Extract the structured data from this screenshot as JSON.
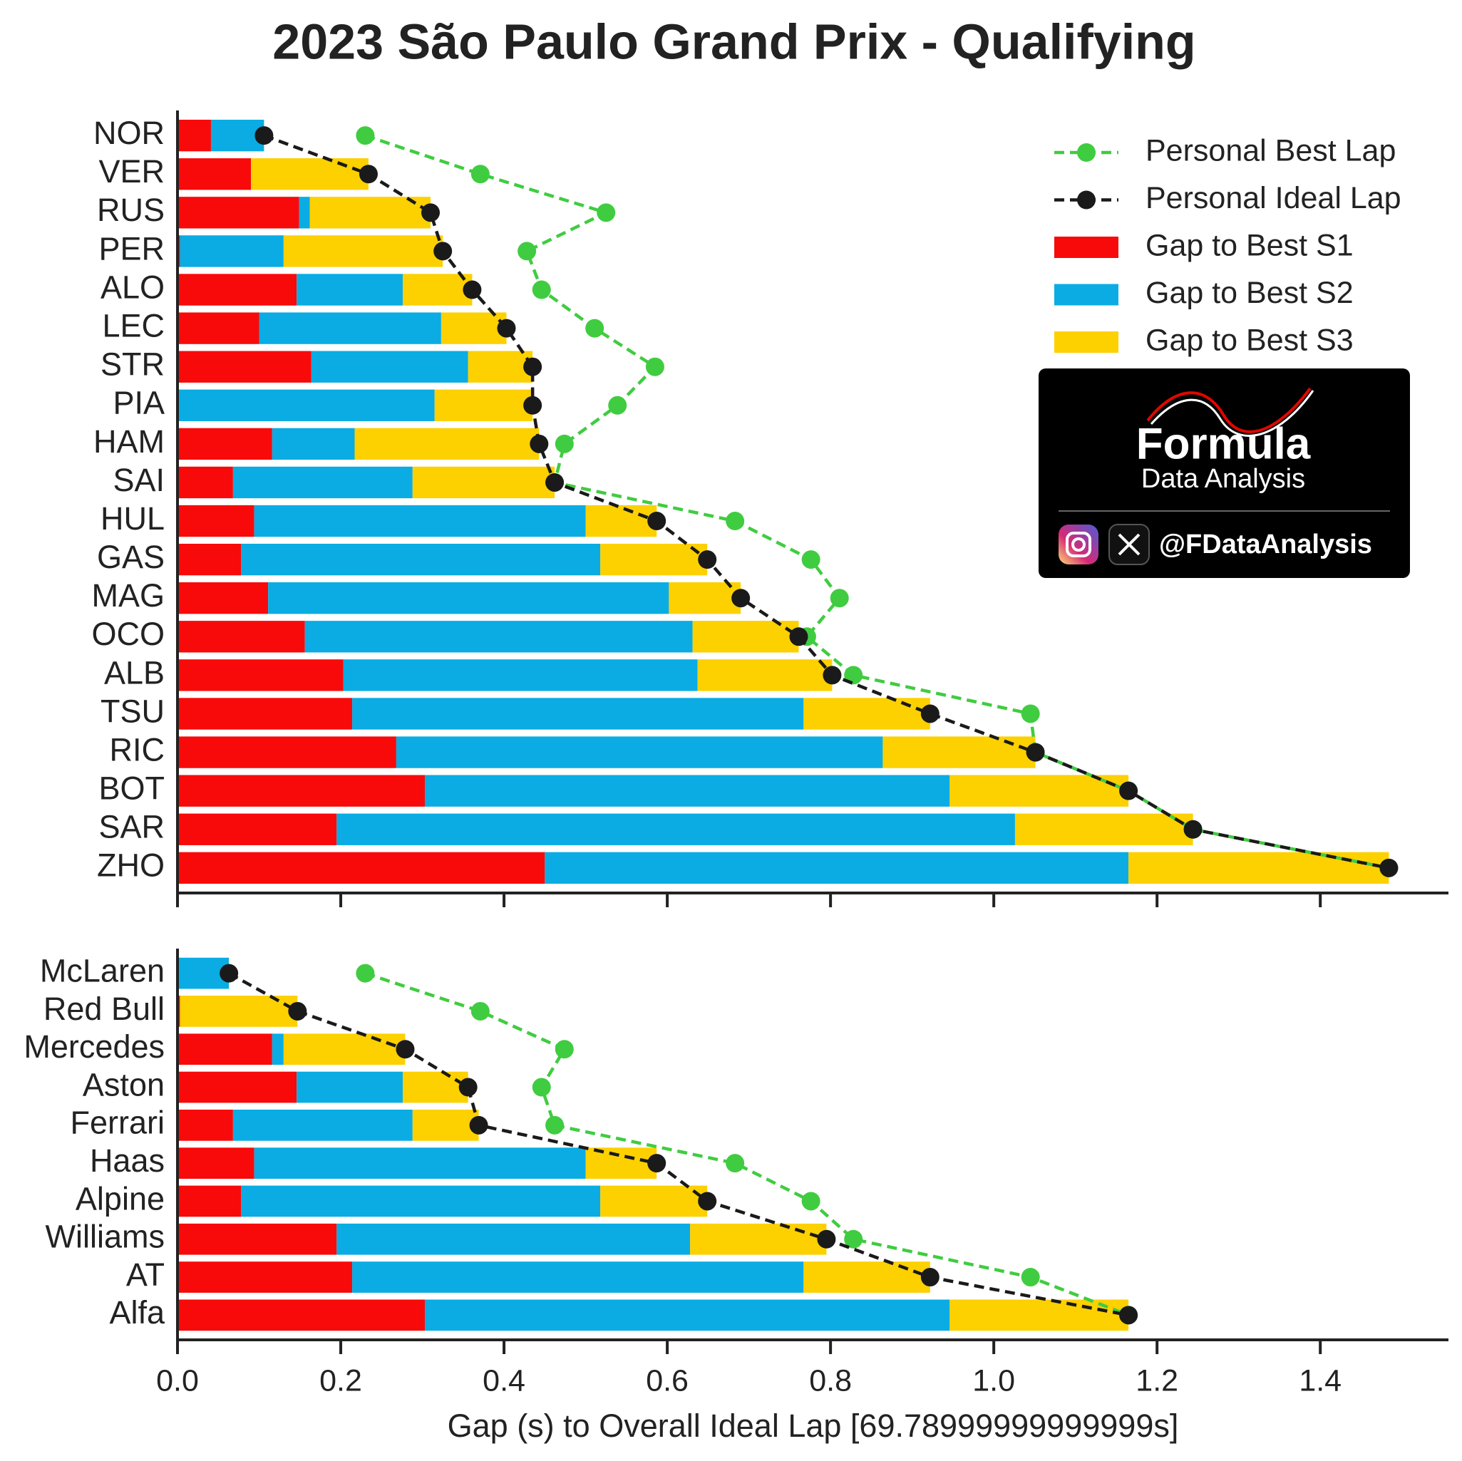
{
  "chart_data": [
    {
      "type": "bar",
      "orientation": "horizontal",
      "stacked": true,
      "title": "2023 São Paulo Grand Prix - Qualifying",
      "categories": [
        "NOR",
        "VER",
        "RUS",
        "PER",
        "ALO",
        "LEC",
        "STR",
        "PIA",
        "HAM",
        "SAI",
        "HUL",
        "GAS",
        "MAG",
        "OCO",
        "ALB",
        "TSU",
        "RIC",
        "BOT",
        "SAR",
        "ZHO"
      ],
      "series": [
        {
          "name": "Personal Best Lap",
          "type": "line",
          "color": "#40cc40",
          "values": [
            0.23,
            0.371,
            0.525,
            0.428,
            0.446,
            0.511,
            0.585,
            0.539,
            0.474,
            0.462,
            0.683,
            0.776,
            0.811,
            0.771,
            0.828,
            1.045,
            1.051,
            1.165,
            1.244,
            1.484
          ]
        },
        {
          "name": "Personal Ideal Lap",
          "type": "line",
          "color": "#1a1a1a",
          "values": [
            0.106,
            0.234,
            0.31,
            0.325,
            0.361,
            0.403,
            0.435,
            0.435,
            0.443,
            0.462,
            0.587,
            0.649,
            0.69,
            0.761,
            0.802,
            0.922,
            1.051,
            1.165,
            1.244,
            1.484
          ]
        },
        {
          "name": "Gap to Best S1",
          "type": "bar",
          "color": "#f80a0a",
          "values": [
            0.041,
            0.09,
            0.149,
            0.003,
            0.146,
            0.1,
            0.164,
            0,
            0.116,
            0.068,
            0.094,
            0.078,
            0.111,
            0.156,
            0.203,
            0.214,
            0.268,
            0.303,
            0.195,
            0.45
          ]
        },
        {
          "name": "Gap to Best S2",
          "type": "bar",
          "color": "#0aace3",
          "values": [
            0.065,
            0,
            0.013,
            0.127,
            0.13,
            0.223,
            0.192,
            0.315,
            0.101,
            0.22,
            0.406,
            0.44,
            0.491,
            0.475,
            0.434,
            0.553,
            0.596,
            0.643,
            0.831,
            0.715
          ]
        },
        {
          "name": "Gap to Best S3",
          "type": "bar",
          "color": "#fdd000",
          "values": [
            0,
            0.144,
            0.148,
            0.195,
            0.085,
            0.08,
            0.079,
            0.12,
            0.226,
            0.174,
            0.087,
            0.131,
            0.088,
            0.13,
            0.165,
            0.155,
            0.187,
            0.219,
            0.218,
            0.319
          ]
        }
      ],
      "xlim": [
        0,
        1.557
      ],
      "xticks": [
        0,
        0.2,
        0.4,
        0.6,
        0.8,
        1,
        1.2,
        1.4
      ],
      "xtick_labels": false,
      "legend": "upper right"
    },
    {
      "type": "bar",
      "orientation": "horizontal",
      "stacked": true,
      "categories": [
        "McLaren",
        "Red Bull",
        "Mercedes",
        "Aston",
        "Ferrari",
        "Haas",
        "Alpine",
        "Williams",
        "AT",
        "Alfa"
      ],
      "series": [
        {
          "type": "line",
          "color": "#40cc40",
          "values": [
            0.23,
            0.371,
            0.474,
            0.446,
            0.462,
            0.683,
            0.776,
            0.828,
            1.045,
            1.165
          ]
        },
        {
          "type": "line",
          "color": "#1a1a1a",
          "values": [
            0.063,
            0.147,
            0.279,
            0.356,
            0.369,
            0.587,
            0.649,
            0.795,
            0.922,
            1.165
          ]
        },
        {
          "type": "bar",
          "color": "#f80a0a",
          "values": [
            0,
            0.003,
            0.116,
            0.146,
            0.068,
            0.094,
            0.078,
            0.195,
            0.214,
            0.303
          ]
        },
        {
          "type": "bar",
          "color": "#0aace3",
          "values": [
            0.063,
            0,
            0.014,
            0.13,
            0.22,
            0.406,
            0.44,
            0.433,
            0.553,
            0.643
          ]
        },
        {
          "type": "bar",
          "color": "#fdd000",
          "values": [
            0,
            0.144,
            0.149,
            0.08,
            0.081,
            0.087,
            0.131,
            0.167,
            0.155,
            0.219
          ]
        }
      ],
      "xlim": [
        0,
        1.557
      ],
      "xticks": [
        {
          "value": 0,
          "label": "0.0"
        },
        0.2,
        0.4,
        0.6,
        0.8,
        {
          "value": 1,
          "label": "1.0"
        },
        1.2,
        1.4
      ],
      "xlabel": "Gap (s) to Overall Ideal Lap [69.78999999999999s]"
    }
  ],
  "branding": {
    "title": "Formula",
    "subtitle": "Data Analysis",
    "handle": "@FDataAnalysis"
  }
}
